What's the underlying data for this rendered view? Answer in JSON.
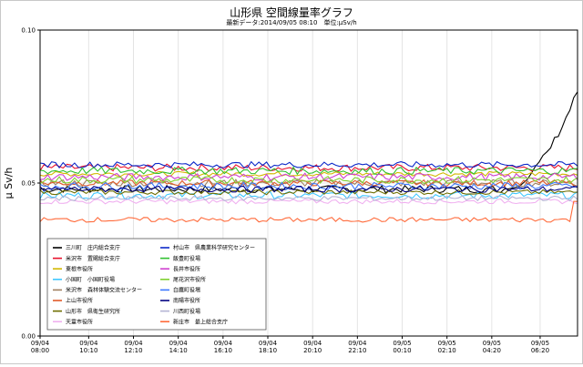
{
  "chart_data": {
    "type": "line",
    "title": "山形県 空間線量率グラフ",
    "subtitle": "最新データ:2014/09/05 08:10　単位:μSv/h",
    "ylabel": "μ Sv/h",
    "ylim": [
      0,
      0.1
    ],
    "yticks": [
      "0.00",
      "0.05",
      "0.10"
    ],
    "xlim": [
      0,
      24
    ],
    "x_ticks": [
      {
        "x": 0,
        "line1": "09/04",
        "line2": "08:00"
      },
      {
        "x": 2.17,
        "line1": "09/04",
        "line2": "10:10"
      },
      {
        "x": 4.17,
        "line1": "09/04",
        "line2": "12:10"
      },
      {
        "x": 6.17,
        "line1": "09/04",
        "line2": "14:10"
      },
      {
        "x": 8.17,
        "line1": "09/04",
        "line2": "16:10"
      },
      {
        "x": 10.17,
        "line1": "09/04",
        "line2": "18:10"
      },
      {
        "x": 12.17,
        "line1": "09/04",
        "line2": "20:10"
      },
      {
        "x": 14.17,
        "line1": "09/04",
        "line2": "22:10"
      },
      {
        "x": 16.17,
        "line1": "09/05",
        "line2": "00:10"
      },
      {
        "x": 18.17,
        "line1": "09/05",
        "line2": "02:10"
      },
      {
        "x": 20.17,
        "line1": "09/05",
        "line2": "04:20"
      },
      {
        "x": 22.33,
        "line1": "09/05",
        "line2": "06:20"
      }
    ],
    "grid": true,
    "legend_position": "bottom-left",
    "series": [
      {
        "name": "三川町　庄内総合支庁",
        "color": "#000000",
        "base": 0.048,
        "noise": 0.0012,
        "rise_start": 20.5,
        "rise_end": 24,
        "end_value": 0.08
      },
      {
        "name": "米沢市　置賜総合支庁",
        "color": "#e8112d",
        "base": 0.055,
        "noise": 0.0012
      },
      {
        "name": "東根市役所",
        "color": "#d2b800",
        "base": 0.053,
        "noise": 0.0008
      },
      {
        "name": "小国町　小国町役場",
        "color": "#40c8ff",
        "base": 0.046,
        "noise": 0.0012
      },
      {
        "name": "米沢市　森林体験交流センター",
        "color": "#a08060",
        "base": 0.05,
        "noise": 0.0012
      },
      {
        "name": "上山市役所",
        "color": "#e05a28",
        "base": 0.05,
        "noise": 0.001
      },
      {
        "name": "山形市　県衛生研究所",
        "color": "#6e6e00",
        "base": 0.047,
        "noise": 0.0008
      },
      {
        "name": "天童市役所",
        "color": "#f0b0f0",
        "base": 0.044,
        "noise": 0.0008
      },
      {
        "name": "村山市　県農業科学研究センター",
        "color": "#0c28c8",
        "base": 0.056,
        "noise": 0.001
      },
      {
        "name": "飯豊町役場",
        "color": "#30c030",
        "base": 0.054,
        "noise": 0.0012
      },
      {
        "name": "長井市役所",
        "color": "#d040d0",
        "base": 0.052,
        "noise": 0.0012
      },
      {
        "name": "尾花沢市役所",
        "color": "#80d030",
        "base": 0.051,
        "noise": 0.0012
      },
      {
        "name": "白鷹町役場",
        "color": "#3c78ff",
        "base": 0.049,
        "noise": 0.0012
      },
      {
        "name": "南陽市役所",
        "color": "#000080",
        "base": 0.048,
        "noise": 0.001
      },
      {
        "name": "川西町役場",
        "color": "#b4b4d4",
        "base": 0.045,
        "noise": 0.0008
      },
      {
        "name": "新庄市　最上総合支庁",
        "color": "#ff6a3a",
        "base": 0.038,
        "noise": 0.0008,
        "end_jump": 0.044
      }
    ]
  }
}
